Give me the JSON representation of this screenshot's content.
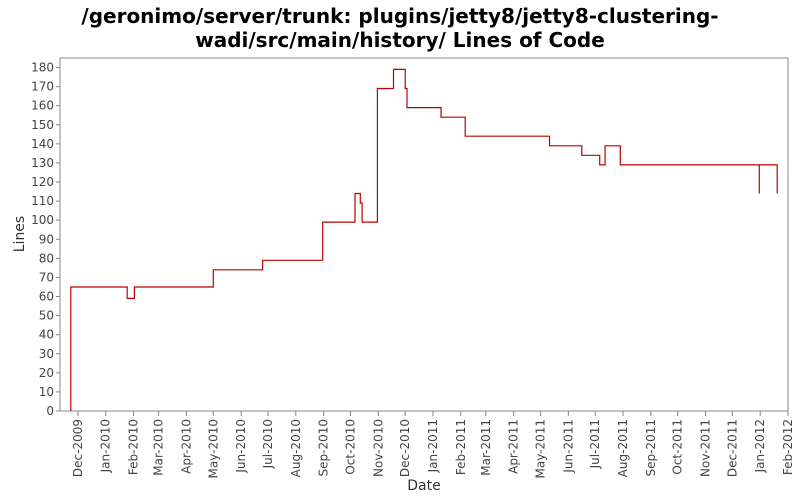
{
  "chart_data": {
    "type": "line",
    "title_lines": [
      "/geronimo/server/trunk: plugins/jetty8/jetty8-clustering-",
      "wadi/src/main/history/ Lines of Code"
    ],
    "xlabel": "Date",
    "ylabel": "Lines",
    "ylim": [
      0,
      185
    ],
    "yticks": [
      0,
      10,
      20,
      30,
      40,
      50,
      60,
      70,
      80,
      90,
      100,
      110,
      120,
      130,
      140,
      150,
      160,
      170,
      180
    ],
    "xlim": [
      "2009-11-11",
      "2012-02-01"
    ],
    "xticks": [
      "Dec-2009",
      "Jan-2010",
      "Feb-2010",
      "Mar-2010",
      "Apr-2010",
      "May-2010",
      "Jun-2010",
      "Jul-2010",
      "Aug-2010",
      "Sep-2010",
      "Oct-2010",
      "Nov-2010",
      "Dec-2010",
      "Jan-2011",
      "Feb-2011",
      "Mar-2011",
      "Apr-2011",
      "May-2011",
      "Jun-2011",
      "Jul-2011",
      "Aug-2011",
      "Sep-2011",
      "Oct-2011",
      "Nov-2011",
      "Dec-2011",
      "Jan-2012",
      "Feb-2012"
    ],
    "grid": false,
    "line_color": "#bb0000",
    "series": [
      {
        "points": [
          [
            "2009-11-23",
            0
          ],
          [
            "2009-11-23",
            65
          ],
          [
            "2010-01-25",
            65
          ],
          [
            "2010-01-25",
            59
          ],
          [
            "2010-02-02",
            59
          ],
          [
            "2010-02-02",
            65
          ],
          [
            "2010-05-01",
            65
          ],
          [
            "2010-05-01",
            74
          ],
          [
            "2010-06-25",
            74
          ],
          [
            "2010-06-25",
            79
          ],
          [
            "2010-08-31",
            79
          ],
          [
            "2010-08-31",
            99
          ],
          [
            "2010-10-06",
            99
          ],
          [
            "2010-10-06",
            114
          ],
          [
            "2010-10-12",
            114
          ],
          [
            "2010-10-12",
            109
          ],
          [
            "2010-10-14",
            109
          ],
          [
            "2010-10-14",
            99
          ],
          [
            "2010-10-31",
            99
          ],
          [
            "2010-10-31",
            169
          ],
          [
            "2010-11-18",
            169
          ],
          [
            "2010-11-18",
            179
          ],
          [
            "2010-12-01",
            179
          ],
          [
            "2010-12-01",
            169
          ],
          [
            "2010-12-03",
            169
          ],
          [
            "2010-12-03",
            159
          ],
          [
            "2011-01-10",
            159
          ],
          [
            "2011-01-10",
            154
          ],
          [
            "2011-02-06",
            154
          ],
          [
            "2011-02-06",
            144
          ],
          [
            "2011-05-11",
            144
          ],
          [
            "2011-05-11",
            139
          ],
          [
            "2011-06-16",
            139
          ],
          [
            "2011-06-16",
            134
          ],
          [
            "2011-07-06",
            134
          ],
          [
            "2011-07-06",
            129
          ],
          [
            "2011-07-12",
            129
          ],
          [
            "2011-07-12",
            139
          ],
          [
            "2011-07-29",
            139
          ],
          [
            "2011-07-29",
            129
          ],
          [
            "2011-12-31",
            129
          ],
          [
            "2011-12-31",
            114
          ],
          [
            "2011-12-31",
            129
          ],
          [
            "2012-01-20",
            129
          ],
          [
            "2012-01-20",
            114
          ]
        ]
      }
    ]
  }
}
